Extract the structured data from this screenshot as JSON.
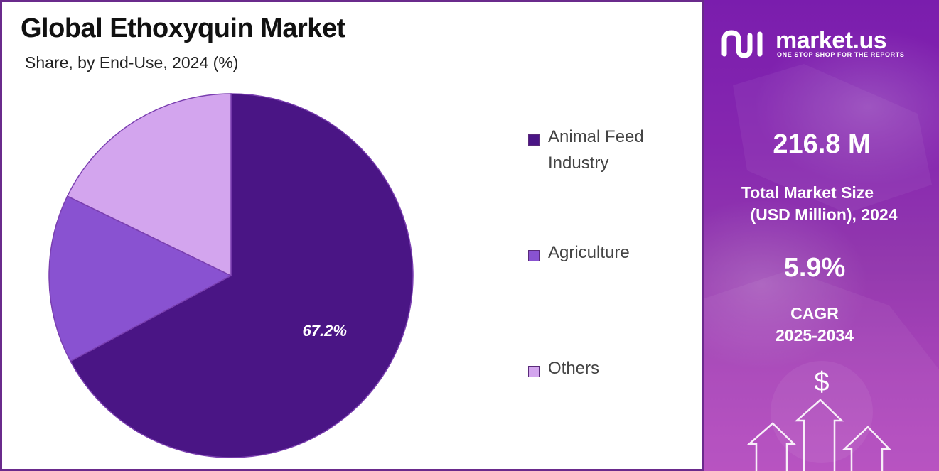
{
  "header": {
    "title": "Global Ethoxyquin Market",
    "subtitle": "Share, by End-Use, 2024 (%)"
  },
  "chart_data": {
    "type": "pie",
    "title": "Global Ethoxyquin Market",
    "subtitle": "Share, by End-Use, 2024 (%)",
    "slices": [
      {
        "label": "Animal Feed Industry",
        "value": 67.2,
        "display_label": "67.2%",
        "color": "#4a1585"
      },
      {
        "label": "Agriculture",
        "value": 15.0,
        "display_label": "",
        "color": "#8952d1"
      },
      {
        "label": "Others",
        "value": 17.8,
        "display_label": "",
        "color": "#d3a5ee"
      }
    ],
    "legend": {
      "placement": "right",
      "items": [
        "Animal Feed Industry",
        "Agriculture",
        "Others"
      ]
    },
    "start_angle": "12 o'clock",
    "direction": "clockwise"
  },
  "legend": {
    "items": [
      {
        "line1": "Animal Feed",
        "line2": "Industry",
        "color": "#4a1585"
      },
      {
        "line1": "Agriculture",
        "line2": "",
        "color": "#8952d1"
      },
      {
        "line1": "Others",
        "line2": "",
        "color": "#d3a5ee"
      }
    ]
  },
  "sidebar": {
    "brand_name": "market.us",
    "brand_tagline": "ONE STOP SHOP FOR THE REPORTS",
    "market_size_value": "216.8  M",
    "market_size_label_line1": "Total Market Size",
    "market_size_label_line2": "(USD Million), 2024",
    "cagr_value": "5.9%",
    "cagr_label_line1": "CAGR",
    "cagr_label_line2": "2025-2034",
    "dollar_symbol": "$",
    "accent_color": "#8c2ab6"
  }
}
